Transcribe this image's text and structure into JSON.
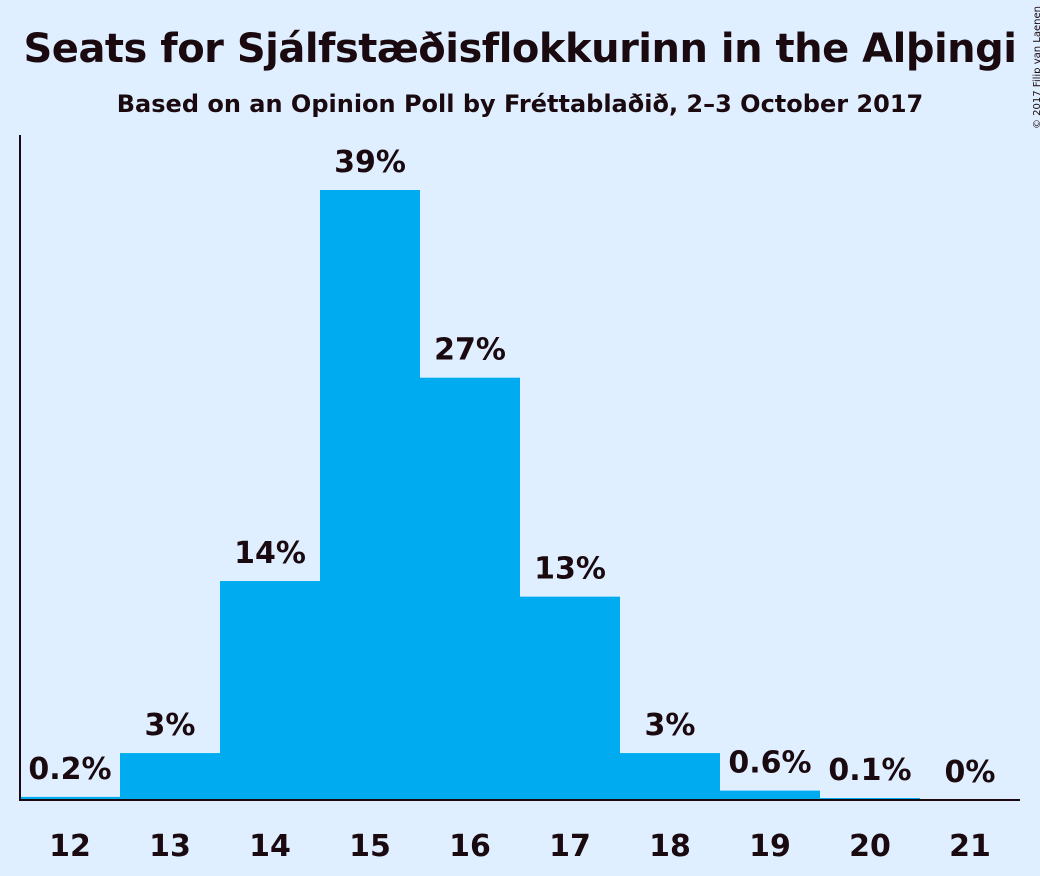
{
  "chart_data": {
    "type": "bar",
    "title": "Seats for Sjálfstæðisflokkurinn in the Alþingi",
    "subtitle": "Based on an Opinion Poll by Fréttablaðið, 2–3 October 2017",
    "categories": [
      "12",
      "13",
      "14",
      "15",
      "16",
      "17",
      "18",
      "19",
      "20",
      "21"
    ],
    "values": [
      0.2,
      3,
      14,
      39,
      27,
      13,
      3,
      0.6,
      0.1,
      0
    ],
    "value_labels": [
      "0.2%",
      "3%",
      "14%",
      "39%",
      "27%",
      "13%",
      "3%",
      "0.6%",
      "0.1%",
      "0%"
    ],
    "xlabel": "",
    "ylabel": "",
    "ylim": [
      0,
      42.5
    ],
    "grid": false,
    "legend": "none",
    "bar_color": "#00acef"
  },
  "copyright": "© 2017 Filip van Laenen"
}
